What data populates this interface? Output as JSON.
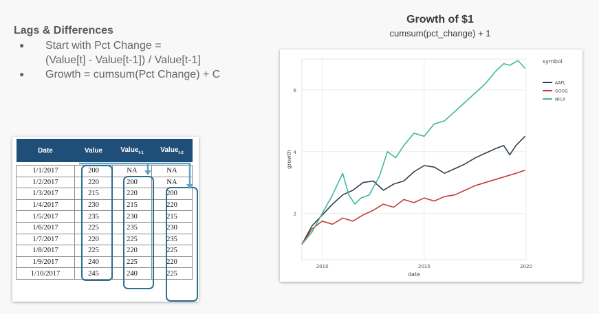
{
  "slide": {
    "title": "Lags & Differences",
    "bullets": [
      {
        "line1": "Start with Pct Change =",
        "line2": "(Value[t] - Value[t-1]) / Value[t-1]"
      },
      {
        "line1": "Growth = cumsum(Pct Change) + C",
        "line2": ""
      }
    ]
  },
  "table": {
    "headers": {
      "date": "Date",
      "value": "Value",
      "value_lag1": "Value",
      "value_lag1_sub": "t-1",
      "value_lag2": "Value",
      "value_lag2_sub": "t-2"
    },
    "rows": [
      [
        "1/1/2017",
        "200",
        "NA",
        "NA"
      ],
      [
        "1/2/2017",
        "220",
        "200",
        "NA"
      ],
      [
        "1/3/2017",
        "215",
        "220",
        "200"
      ],
      [
        "1/4/2017",
        "230",
        "215",
        "220"
      ],
      [
        "1/5/2017",
        "235",
        "230",
        "215"
      ],
      [
        "1/6/2017",
        "225",
        "235",
        "230"
      ],
      [
        "1/7/2017",
        "220",
        "225",
        "235"
      ],
      [
        "1/8/2017",
        "225",
        "220",
        "225"
      ],
      [
        "1/9/2017",
        "240",
        "225",
        "220"
      ],
      [
        "1/10/2017",
        "245",
        "240",
        "225"
      ]
    ],
    "header_color": "#1f4e79",
    "highlight_color": "#2e6e8e",
    "arrow_color": "#5ba3c7"
  },
  "chart_data": {
    "type": "line",
    "title": "Growth of $1",
    "subtitle": "cumsum(pct_change) + 1",
    "xlabel": "date",
    "ylabel": "growth",
    "legend_title": "symbol",
    "legend_position": "right",
    "xlim": [
      2009.0,
      2020.0
    ],
    "ylim": [
      0.5,
      7.0
    ],
    "xticks": [
      {
        "value": 2010,
        "label": "2010"
      },
      {
        "value": 2015,
        "label": "2015"
      },
      {
        "value": 2020,
        "label": "2020"
      }
    ],
    "yticks": [
      {
        "value": 2,
        "label": "2"
      },
      {
        "value": 4,
        "label": "4"
      },
      {
        "value": 6,
        "label": "6"
      }
    ],
    "grid": true,
    "series": [
      {
        "name": "AAPL",
        "color": "#2f3e4e",
        "x": [
          2009.0,
          2009.5,
          2010.0,
          2010.5,
          2011.0,
          2011.5,
          2012.0,
          2012.5,
          2013.0,
          2013.5,
          2014.0,
          2014.5,
          2015.0,
          2015.5,
          2016.0,
          2016.5,
          2017.0,
          2017.5,
          2018.0,
          2018.5,
          2018.9,
          2019.2,
          2019.5,
          2019.95
        ],
        "y": [
          1.0,
          1.6,
          1.95,
          2.3,
          2.6,
          2.75,
          3.0,
          3.05,
          2.75,
          2.95,
          3.05,
          3.35,
          3.55,
          3.5,
          3.3,
          3.45,
          3.6,
          3.8,
          3.95,
          4.1,
          4.2,
          3.9,
          4.2,
          4.5
        ]
      },
      {
        "name": "GOOG",
        "color": "#c63b36",
        "x": [
          2009.0,
          2009.5,
          2010.0,
          2010.5,
          2011.0,
          2011.5,
          2012.0,
          2012.5,
          2013.0,
          2013.5,
          2014.0,
          2014.5,
          2015.0,
          2015.5,
          2016.0,
          2016.5,
          2017.0,
          2017.5,
          2018.0,
          2018.5,
          2019.0,
          2019.5,
          2019.95
        ],
        "y": [
          1.0,
          1.5,
          1.75,
          1.65,
          1.85,
          1.75,
          1.95,
          2.1,
          2.3,
          2.2,
          2.45,
          2.35,
          2.5,
          2.4,
          2.55,
          2.6,
          2.75,
          2.9,
          3.0,
          3.1,
          3.2,
          3.3,
          3.4
        ]
      },
      {
        "name": "NFLX",
        "color": "#3fb89a",
        "x": [
          2009.0,
          2009.5,
          2010.0,
          2010.5,
          2011.0,
          2011.3,
          2011.6,
          2011.9,
          2012.3,
          2012.8,
          2013.2,
          2013.6,
          2014.0,
          2014.5,
          2015.0,
          2015.5,
          2016.0,
          2016.5,
          2017.0,
          2017.5,
          2018.0,
          2018.5,
          2018.9,
          2019.2,
          2019.6,
          2019.95
        ],
        "y": [
          1.0,
          1.4,
          2.0,
          2.6,
          3.3,
          2.6,
          2.3,
          2.5,
          2.6,
          3.2,
          4.0,
          3.8,
          4.2,
          4.6,
          4.5,
          4.9,
          5.0,
          5.3,
          5.6,
          5.9,
          6.2,
          6.6,
          6.85,
          6.8,
          6.95,
          6.7
        ]
      }
    ]
  }
}
